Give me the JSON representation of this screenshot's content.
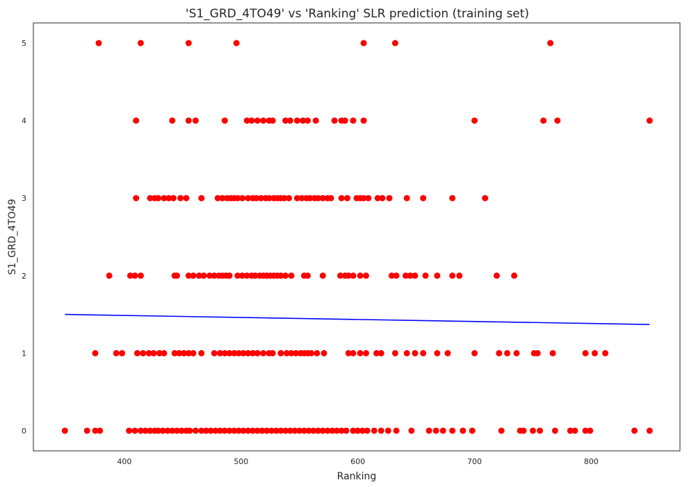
{
  "chart_data": {
    "type": "scatter",
    "title": "'S1_GRD_4TO49' vs 'Ranking' SLR prediction (training set)",
    "xlabel": "Ranking",
    "ylabel": "S1_GRD_4TO49",
    "xlim": [
      322,
      876
    ],
    "ylim": [
      -0.26,
      5.26
    ],
    "xticks": [
      400,
      500,
      600,
      700,
      800
    ],
    "yticks": [
      0,
      1,
      2,
      3,
      4,
      5
    ],
    "grid": false,
    "point_color": "#ff0000",
    "line_color": "#0000ff",
    "series": [
      {
        "type": "scatter",
        "points": [
          [
            378,
            5
          ],
          [
            414,
            5
          ],
          [
            455,
            5
          ],
          [
            496,
            5
          ],
          [
            605,
            5
          ],
          [
            632,
            5
          ],
          [
            765,
            5
          ],
          [
            410,
            4
          ],
          [
            441,
            4
          ],
          [
            455,
            4
          ],
          [
            461,
            4
          ],
          [
            486,
            4
          ],
          [
            505,
            4
          ],
          [
            509,
            4
          ],
          [
            514,
            4
          ],
          [
            519,
            4
          ],
          [
            524,
            4
          ],
          [
            527,
            4
          ],
          [
            538,
            4
          ],
          [
            542,
            4
          ],
          [
            548,
            4
          ],
          [
            553,
            4
          ],
          [
            557,
            4
          ],
          [
            564,
            4
          ],
          [
            580,
            4
          ],
          [
            586,
            4
          ],
          [
            589,
            4
          ],
          [
            596,
            4
          ],
          [
            605,
            4
          ],
          [
            700,
            4
          ],
          [
            759,
            4
          ],
          [
            771,
            4
          ],
          [
            850,
            4
          ],
          [
            410,
            3
          ],
          [
            422,
            3
          ],
          [
            426,
            3
          ],
          [
            429,
            3
          ],
          [
            434,
            3
          ],
          [
            438,
            3
          ],
          [
            442,
            3
          ],
          [
            448,
            3
          ],
          [
            453,
            3
          ],
          [
            466,
            3
          ],
          [
            480,
            3
          ],
          [
            484,
            3
          ],
          [
            488,
            3
          ],
          [
            491,
            3
          ],
          [
            494,
            3
          ],
          [
            497,
            3
          ],
          [
            501,
            3
          ],
          [
            506,
            3
          ],
          [
            510,
            3
          ],
          [
            513,
            3
          ],
          [
            517,
            3
          ],
          [
            521,
            3
          ],
          [
            524,
            3
          ],
          [
            528,
            3
          ],
          [
            531,
            3
          ],
          [
            534,
            3
          ],
          [
            537,
            3
          ],
          [
            541,
            3
          ],
          [
            548,
            3
          ],
          [
            552,
            3
          ],
          [
            556,
            3
          ],
          [
            559,
            3
          ],
          [
            563,
            3
          ],
          [
            566,
            3
          ],
          [
            570,
            3
          ],
          [
            574,
            3
          ],
          [
            577,
            3
          ],
          [
            586,
            3
          ],
          [
            591,
            3
          ],
          [
            599,
            3
          ],
          [
            602,
            3
          ],
          [
            605,
            3
          ],
          [
            609,
            3
          ],
          [
            617,
            3
          ],
          [
            621,
            3
          ],
          [
            627,
            3
          ],
          [
            642,
            3
          ],
          [
            656,
            3
          ],
          [
            681,
            3
          ],
          [
            709,
            3
          ],
          [
            387,
            2
          ],
          [
            405,
            2
          ],
          [
            409,
            2
          ],
          [
            414,
            2
          ],
          [
            443,
            2
          ],
          [
            445,
            2
          ],
          [
            455,
            2
          ],
          [
            459,
            2
          ],
          [
            464,
            2
          ],
          [
            468,
            2
          ],
          [
            473,
            2
          ],
          [
            477,
            2
          ],
          [
            481,
            2
          ],
          [
            484,
            2
          ],
          [
            487,
            2
          ],
          [
            490,
            2
          ],
          [
            497,
            2
          ],
          [
            501,
            2
          ],
          [
            505,
            2
          ],
          [
            509,
            2
          ],
          [
            512,
            2
          ],
          [
            516,
            2
          ],
          [
            519,
            2
          ],
          [
            522,
            2
          ],
          [
            525,
            2
          ],
          [
            528,
            2
          ],
          [
            531,
            2
          ],
          [
            534,
            2
          ],
          [
            538,
            2
          ],
          [
            543,
            2
          ],
          [
            554,
            2
          ],
          [
            557,
            2
          ],
          [
            570,
            2
          ],
          [
            585,
            2
          ],
          [
            589,
            2
          ],
          [
            592,
            2
          ],
          [
            596,
            2
          ],
          [
            602,
            2
          ],
          [
            607,
            2
          ],
          [
            629,
            2
          ],
          [
            633,
            2
          ],
          [
            641,
            2
          ],
          [
            645,
            2
          ],
          [
            649,
            2
          ],
          [
            658,
            2
          ],
          [
            668,
            2
          ],
          [
            681,
            2
          ],
          [
            687,
            2
          ],
          [
            719,
            2
          ],
          [
            734,
            2
          ],
          [
            375,
            1
          ],
          [
            393,
            1
          ],
          [
            398,
            1
          ],
          [
            411,
            1
          ],
          [
            416,
            1
          ],
          [
            421,
            1
          ],
          [
            425,
            1
          ],
          [
            430,
            1
          ],
          [
            434,
            1
          ],
          [
            443,
            1
          ],
          [
            447,
            1
          ],
          [
            451,
            1
          ],
          [
            455,
            1
          ],
          [
            459,
            1
          ],
          [
            466,
            1
          ],
          [
            477,
            1
          ],
          [
            482,
            1
          ],
          [
            486,
            1
          ],
          [
            490,
            1
          ],
          [
            494,
            1
          ],
          [
            498,
            1
          ],
          [
            502,
            1
          ],
          [
            506,
            1
          ],
          [
            510,
            1
          ],
          [
            514,
            1
          ],
          [
            519,
            1
          ],
          [
            524,
            1
          ],
          [
            527,
            1
          ],
          [
            534,
            1
          ],
          [
            539,
            1
          ],
          [
            543,
            1
          ],
          [
            547,
            1
          ],
          [
            551,
            1
          ],
          [
            554,
            1
          ],
          [
            557,
            1
          ],
          [
            560,
            1
          ],
          [
            565,
            1
          ],
          [
            571,
            1
          ],
          [
            592,
            1
          ],
          [
            596,
            1
          ],
          [
            602,
            1
          ],
          [
            607,
            1
          ],
          [
            616,
            1
          ],
          [
            620,
            1
          ],
          [
            632,
            1
          ],
          [
            642,
            1
          ],
          [
            649,
            1
          ],
          [
            656,
            1
          ],
          [
            668,
            1
          ],
          [
            677,
            1
          ],
          [
            700,
            1
          ],
          [
            721,
            1
          ],
          [
            728,
            1
          ],
          [
            736,
            1
          ],
          [
            751,
            1
          ],
          [
            754,
            1
          ],
          [
            767,
            1
          ],
          [
            795,
            1
          ],
          [
            803,
            1
          ],
          [
            812,
            1
          ],
          [
            349,
            0
          ],
          [
            368,
            0
          ],
          [
            375,
            0
          ],
          [
            379,
            0
          ],
          [
            404,
            0
          ],
          [
            409,
            0
          ],
          [
            414,
            0
          ],
          [
            418,
            0
          ],
          [
            422,
            0
          ],
          [
            426,
            0
          ],
          [
            429,
            0
          ],
          [
            433,
            0
          ],
          [
            437,
            0
          ],
          [
            441,
            0
          ],
          [
            445,
            0
          ],
          [
            449,
            0
          ],
          [
            453,
            0
          ],
          [
            456,
            0
          ],
          [
            461,
            0
          ],
          [
            466,
            0
          ],
          [
            470,
            0
          ],
          [
            474,
            0
          ],
          [
            478,
            0
          ],
          [
            482,
            0
          ],
          [
            486,
            0
          ],
          [
            490,
            0
          ],
          [
            494,
            0
          ],
          [
            498,
            0
          ],
          [
            502,
            0
          ],
          [
            506,
            0
          ],
          [
            510,
            0
          ],
          [
            514,
            0
          ],
          [
            518,
            0
          ],
          [
            522,
            0
          ],
          [
            526,
            0
          ],
          [
            530,
            0
          ],
          [
            534,
            0
          ],
          [
            538,
            0
          ],
          [
            542,
            0
          ],
          [
            546,
            0
          ],
          [
            550,
            0
          ],
          [
            554,
            0
          ],
          [
            558,
            0
          ],
          [
            562,
            0
          ],
          [
            566,
            0
          ],
          [
            570,
            0
          ],
          [
            574,
            0
          ],
          [
            578,
            0
          ],
          [
            582,
            0
          ],
          [
            586,
            0
          ],
          [
            590,
            0
          ],
          [
            596,
            0
          ],
          [
            600,
            0
          ],
          [
            604,
            0
          ],
          [
            608,
            0
          ],
          [
            614,
            0
          ],
          [
            620,
            0
          ],
          [
            626,
            0
          ],
          [
            633,
            0
          ],
          [
            646,
            0
          ],
          [
            661,
            0
          ],
          [
            667,
            0
          ],
          [
            673,
            0
          ],
          [
            681,
            0
          ],
          [
            690,
            0
          ],
          [
            698,
            0
          ],
          [
            723,
            0
          ],
          [
            739,
            0
          ],
          [
            742,
            0
          ],
          [
            750,
            0
          ],
          [
            756,
            0
          ],
          [
            769,
            0
          ],
          [
            782,
            0
          ],
          [
            786,
            0
          ],
          [
            795,
            0
          ],
          [
            799,
            0
          ],
          [
            837,
            0
          ],
          [
            850,
            0
          ]
        ]
      },
      {
        "type": "line",
        "points": [
          [
            349,
            1.5
          ],
          [
            850,
            1.37
          ]
        ]
      }
    ]
  }
}
